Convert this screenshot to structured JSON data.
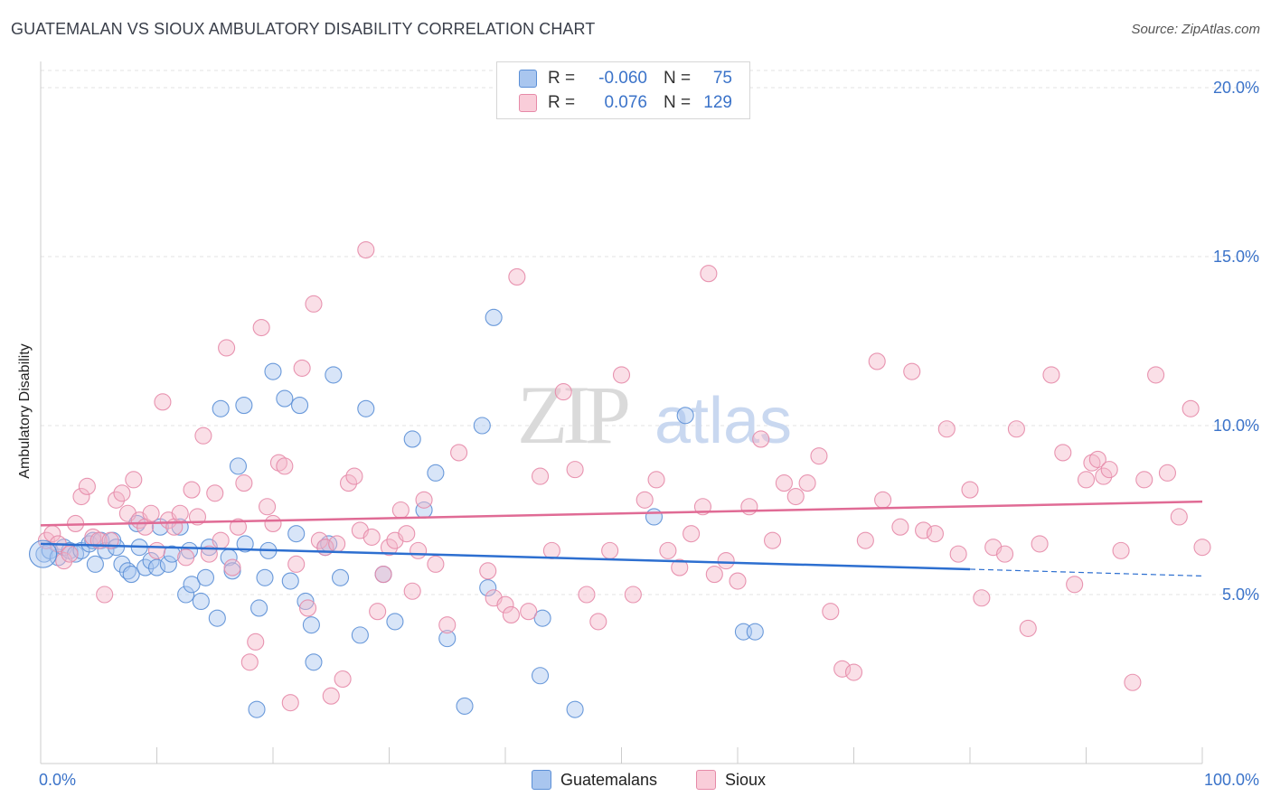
{
  "title": "GUATEMALAN VS SIOUX AMBULATORY DISABILITY CORRELATION CHART",
  "source": "Source: ZipAtlas.com",
  "watermark": {
    "zip": "ZIP",
    "atlas": "atlas"
  },
  "legend": {
    "rows": [
      {
        "r_label": "R =",
        "r_value": "-0.060",
        "n_label": "N =",
        "n_value": "75",
        "color": "#a9c6ef"
      },
      {
        "r_label": "R =",
        "r_value": "0.076",
        "n_label": "N =",
        "n_value": "129",
        "color": "#f5b8ca"
      }
    ]
  },
  "bottom_legend": [
    {
      "label": "Guatemalans",
      "color": "#a9c6ef"
    },
    {
      "label": "Sioux",
      "color": "#f5b8ca"
    }
  ],
  "chart_data": {
    "type": "scatter",
    "title": "GUATEMALAN VS SIOUX AMBULATORY DISABILITY CORRELATION CHART",
    "xlabel": "",
    "ylabel": "Ambulatory Disability",
    "x_tick_labels": [
      "0.0%",
      "100.0%"
    ],
    "y_tick_labels": [
      "5.0%",
      "10.0%",
      "15.0%",
      "20.0%"
    ],
    "y_ticks": [
      5,
      10,
      15,
      20
    ],
    "xlim": [
      0,
      100
    ],
    "ylim": [
      0,
      20.5
    ],
    "grid": true,
    "legend_position": "top-center",
    "series": [
      {
        "name": "Guatemalans",
        "color": "#5b8fd6",
        "fill": "#a9c6ef",
        "line_color": "#2d6fd0",
        "trend": {
          "x0": 0,
          "y0": 6.5,
          "x1": 80,
          "y1": 5.75,
          "dash_to_x": 100,
          "dash_to_y": 5.55
        },
        "points": [
          [
            0.3,
            6.2
          ],
          [
            0.8,
            6.3
          ],
          [
            1.5,
            6.1
          ],
          [
            2.0,
            6.4
          ],
          [
            2.5,
            6.3
          ],
          [
            3.0,
            6.2
          ],
          [
            3.5,
            6.3
          ],
          [
            4.2,
            6.5
          ],
          [
            4.5,
            6.6
          ],
          [
            4.7,
            5.9
          ],
          [
            5.2,
            6.6
          ],
          [
            5.6,
            6.3
          ],
          [
            6.2,
            6.6
          ],
          [
            6.5,
            6.4
          ],
          [
            7.0,
            5.9
          ],
          [
            7.5,
            5.7
          ],
          [
            7.8,
            5.6
          ],
          [
            8.3,
            7.1
          ],
          [
            8.5,
            6.4
          ],
          [
            9.0,
            5.8
          ],
          [
            9.5,
            6.0
          ],
          [
            10.0,
            5.8
          ],
          [
            10.3,
            7.0
          ],
          [
            11.0,
            5.9
          ],
          [
            11.3,
            6.2
          ],
          [
            12.0,
            7.0
          ],
          [
            12.5,
            5.0
          ],
          [
            12.8,
            6.3
          ],
          [
            13.0,
            5.3
          ],
          [
            13.8,
            4.8
          ],
          [
            14.2,
            5.5
          ],
          [
            14.5,
            6.4
          ],
          [
            15.2,
            4.3
          ],
          [
            15.5,
            10.5
          ],
          [
            16.2,
            6.1
          ],
          [
            16.5,
            5.7
          ],
          [
            17.0,
            8.8
          ],
          [
            17.5,
            10.6
          ],
          [
            17.6,
            6.5
          ],
          [
            18.6,
            1.6
          ],
          [
            18.8,
            4.6
          ],
          [
            19.3,
            5.5
          ],
          [
            19.6,
            6.3
          ],
          [
            20.0,
            11.6
          ],
          [
            21.0,
            10.8
          ],
          [
            21.5,
            5.4
          ],
          [
            22.0,
            6.8
          ],
          [
            22.3,
            10.6
          ],
          [
            22.8,
            4.8
          ],
          [
            23.3,
            4.1
          ],
          [
            23.5,
            3.0
          ],
          [
            24.5,
            6.4
          ],
          [
            24.8,
            6.5
          ],
          [
            25.2,
            11.5
          ],
          [
            25.8,
            5.5
          ],
          [
            27.5,
            3.8
          ],
          [
            28.0,
            10.5
          ],
          [
            29.5,
            5.6
          ],
          [
            30.5,
            4.2
          ],
          [
            32.0,
            9.6
          ],
          [
            33.0,
            7.5
          ],
          [
            34.0,
            8.6
          ],
          [
            35.0,
            3.7
          ],
          [
            36.5,
            1.7
          ],
          [
            38.0,
            10.0
          ],
          [
            38.5,
            5.2
          ],
          [
            39.0,
            13.2
          ],
          [
            43.0,
            2.6
          ],
          [
            43.2,
            4.3
          ],
          [
            46.0,
            1.6
          ],
          [
            52.8,
            7.3
          ],
          [
            55.5,
            10.3
          ],
          [
            60.5,
            3.9
          ],
          [
            61.5,
            3.9
          ]
        ]
      },
      {
        "name": "Sioux",
        "color": "#e68aa8",
        "fill": "#f5b8ca",
        "line_color": "#e06b95",
        "trend": {
          "x0": 0,
          "y0": 7.05,
          "x1": 100,
          "y1": 7.75
        },
        "points": [
          [
            0.5,
            6.6
          ],
          [
            1.0,
            6.8
          ],
          [
            1.5,
            6.5
          ],
          [
            2.0,
            6.0
          ],
          [
            2.5,
            6.2
          ],
          [
            3.0,
            7.1
          ],
          [
            3.5,
            7.9
          ],
          [
            4.0,
            8.2
          ],
          [
            4.5,
            6.7
          ],
          [
            5.0,
            6.6
          ],
          [
            5.5,
            5.0
          ],
          [
            6.0,
            6.6
          ],
          [
            6.5,
            7.8
          ],
          [
            7.0,
            8.0
          ],
          [
            7.5,
            7.4
          ],
          [
            8.0,
            8.4
          ],
          [
            8.5,
            7.2
          ],
          [
            9.0,
            7.0
          ],
          [
            9.5,
            7.4
          ],
          [
            10.0,
            6.3
          ],
          [
            10.5,
            10.7
          ],
          [
            11.0,
            7.2
          ],
          [
            11.5,
            7.0
          ],
          [
            12.0,
            7.4
          ],
          [
            12.5,
            6.1
          ],
          [
            13.0,
            8.1
          ],
          [
            13.5,
            7.3
          ],
          [
            14.0,
            9.7
          ],
          [
            14.5,
            6.2
          ],
          [
            15.0,
            8.0
          ],
          [
            15.5,
            6.6
          ],
          [
            16.0,
            12.3
          ],
          [
            16.5,
            5.8
          ],
          [
            17.0,
            7.0
          ],
          [
            17.5,
            8.3
          ],
          [
            18.0,
            3.0
          ],
          [
            18.5,
            3.6
          ],
          [
            19.0,
            12.9
          ],
          [
            19.5,
            7.6
          ],
          [
            20.0,
            7.1
          ],
          [
            20.5,
            8.9
          ],
          [
            21.0,
            8.8
          ],
          [
            21.5,
            1.8
          ],
          [
            22.0,
            5.9
          ],
          [
            22.5,
            11.7
          ],
          [
            23.0,
            4.6
          ],
          [
            23.5,
            13.6
          ],
          [
            24.0,
            6.6
          ],
          [
            24.5,
            6.4
          ],
          [
            25.0,
            2.0
          ],
          [
            25.5,
            6.5
          ],
          [
            26.0,
            2.5
          ],
          [
            26.5,
            8.3
          ],
          [
            27.0,
            8.5
          ],
          [
            27.5,
            6.9
          ],
          [
            28.0,
            15.2
          ],
          [
            28.5,
            6.7
          ],
          [
            29.0,
            4.5
          ],
          [
            29.5,
            5.6
          ],
          [
            30.0,
            6.4
          ],
          [
            30.5,
            6.6
          ],
          [
            31.0,
            7.5
          ],
          [
            31.5,
            6.8
          ],
          [
            32.0,
            5.1
          ],
          [
            32.5,
            6.3
          ],
          [
            33.0,
            7.8
          ],
          [
            34.0,
            5.9
          ],
          [
            35.0,
            4.1
          ],
          [
            36.0,
            9.2
          ],
          [
            38.5,
            5.7
          ],
          [
            39.0,
            4.9
          ],
          [
            40.0,
            4.7
          ],
          [
            40.5,
            4.4
          ],
          [
            41.0,
            14.4
          ],
          [
            42.0,
            4.5
          ],
          [
            43.0,
            8.5
          ],
          [
            44.0,
            6.3
          ],
          [
            45.0,
            11.0
          ],
          [
            46.0,
            8.7
          ],
          [
            47.0,
            5.0
          ],
          [
            48.0,
            4.2
          ],
          [
            49.0,
            6.3
          ],
          [
            50.0,
            11.5
          ],
          [
            51.0,
            5.0
          ],
          [
            52.0,
            7.8
          ],
          [
            53.0,
            8.4
          ],
          [
            54.0,
            6.3
          ],
          [
            55.0,
            5.8
          ],
          [
            56.0,
            6.8
          ],
          [
            57.0,
            7.6
          ],
          [
            57.5,
            14.5
          ],
          [
            58.0,
            5.6
          ],
          [
            59.0,
            6.0
          ],
          [
            60.0,
            5.4
          ],
          [
            61.0,
            7.6
          ],
          [
            62.0,
            9.6
          ],
          [
            63.0,
            6.6
          ],
          [
            64.0,
            8.3
          ],
          [
            65.0,
            7.9
          ],
          [
            66.0,
            8.3
          ],
          [
            67.0,
            9.1
          ],
          [
            68.0,
            4.5
          ],
          [
            69.0,
            2.8
          ],
          [
            70.0,
            2.7
          ],
          [
            71.0,
            6.6
          ],
          [
            72.0,
            11.9
          ],
          [
            72.5,
            7.8
          ],
          [
            74.0,
            7.0
          ],
          [
            75.0,
            11.6
          ],
          [
            76.0,
            6.9
          ],
          [
            77.0,
            6.8
          ],
          [
            78.0,
            9.9
          ],
          [
            79.0,
            6.2
          ],
          [
            80.0,
            8.1
          ],
          [
            81.0,
            4.9
          ],
          [
            82.0,
            6.4
          ],
          [
            83.0,
            6.2
          ],
          [
            84.0,
            9.9
          ],
          [
            85.0,
            4.0
          ],
          [
            86.0,
            6.5
          ],
          [
            87.0,
            11.5
          ],
          [
            88.0,
            9.2
          ],
          [
            89.0,
            5.3
          ],
          [
            90.0,
            8.4
          ],
          [
            90.5,
            8.9
          ],
          [
            91.0,
            9.0
          ],
          [
            91.5,
            8.5
          ],
          [
            92.0,
            8.7
          ],
          [
            93.0,
            6.3
          ],
          [
            94.0,
            2.4
          ],
          [
            95.0,
            8.4
          ],
          [
            96.0,
            11.5
          ],
          [
            97.0,
            8.6
          ],
          [
            98.0,
            7.3
          ],
          [
            99.0,
            10.5
          ],
          [
            100,
            6.4
          ]
        ]
      }
    ]
  }
}
